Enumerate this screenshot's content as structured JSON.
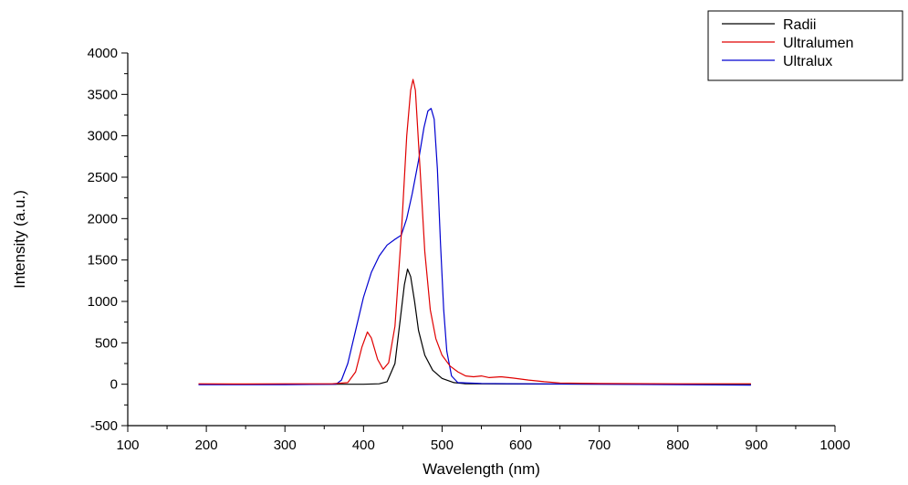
{
  "chart_data": {
    "type": "line",
    "title": "",
    "xlabel": "Wavelength (nm)",
    "ylabel": "Intensity (a.u.)",
    "xlim": [
      100,
      1000
    ],
    "ylim": [
      -500,
      4000
    ],
    "xticks": [
      100,
      200,
      300,
      400,
      500,
      600,
      700,
      800,
      900,
      1000
    ],
    "yticks": [
      -500,
      0,
      500,
      1000,
      1500,
      2000,
      2500,
      3000,
      3500,
      4000
    ],
    "grid": false,
    "legend_position": "top-right",
    "series": [
      {
        "name": "Radii",
        "color": "#000000",
        "points": [
          [
            190,
            0
          ],
          [
            300,
            0
          ],
          [
            400,
            0
          ],
          [
            420,
            5
          ],
          [
            430,
            30
          ],
          [
            440,
            250
          ],
          [
            447,
            800
          ],
          [
            452,
            1200
          ],
          [
            456,
            1390
          ],
          [
            460,
            1300
          ],
          [
            465,
            1000
          ],
          [
            470,
            650
          ],
          [
            478,
            350
          ],
          [
            488,
            170
          ],
          [
            500,
            70
          ],
          [
            515,
            20
          ],
          [
            530,
            5
          ],
          [
            600,
            3
          ],
          [
            700,
            2
          ],
          [
            800,
            1
          ],
          [
            893,
            0
          ]
        ]
      },
      {
        "name": "Ultralumen",
        "color": "#e00000",
        "points": [
          [
            190,
            5
          ],
          [
            250,
            3
          ],
          [
            300,
            5
          ],
          [
            360,
            5
          ],
          [
            380,
            20
          ],
          [
            390,
            150
          ],
          [
            398,
            450
          ],
          [
            405,
            630
          ],
          [
            410,
            560
          ],
          [
            418,
            300
          ],
          [
            425,
            180
          ],
          [
            432,
            260
          ],
          [
            440,
            700
          ],
          [
            448,
            1800
          ],
          [
            455,
            3000
          ],
          [
            460,
            3550
          ],
          [
            463,
            3680
          ],
          [
            466,
            3550
          ],
          [
            472,
            2600
          ],
          [
            478,
            1600
          ],
          [
            485,
            900
          ],
          [
            492,
            550
          ],
          [
            500,
            350
          ],
          [
            510,
            220
          ],
          [
            520,
            150
          ],
          [
            530,
            100
          ],
          [
            540,
            90
          ],
          [
            550,
            100
          ],
          [
            560,
            80
          ],
          [
            575,
            90
          ],
          [
            590,
            75
          ],
          [
            610,
            50
          ],
          [
            630,
            30
          ],
          [
            650,
            15
          ],
          [
            700,
            8
          ],
          [
            800,
            5
          ],
          [
            893,
            5
          ]
        ]
      },
      {
        "name": "Ultralux",
        "color": "#0000d0",
        "points": [
          [
            190,
            -5
          ],
          [
            300,
            -5
          ],
          [
            365,
            0
          ],
          [
            372,
            50
          ],
          [
            380,
            250
          ],
          [
            390,
            650
          ],
          [
            400,
            1050
          ],
          [
            410,
            1350
          ],
          [
            420,
            1550
          ],
          [
            430,
            1680
          ],
          [
            440,
            1750
          ],
          [
            448,
            1800
          ],
          [
            455,
            2000
          ],
          [
            462,
            2300
          ],
          [
            470,
            2700
          ],
          [
            477,
            3100
          ],
          [
            482,
            3300
          ],
          [
            486,
            3330
          ],
          [
            490,
            3200
          ],
          [
            494,
            2600
          ],
          [
            498,
            1700
          ],
          [
            502,
            900
          ],
          [
            506,
            400
          ],
          [
            512,
            100
          ],
          [
            520,
            20
          ],
          [
            550,
            10
          ],
          [
            600,
            5
          ],
          [
            700,
            0
          ],
          [
            800,
            -5
          ],
          [
            893,
            -10
          ]
        ]
      }
    ]
  }
}
